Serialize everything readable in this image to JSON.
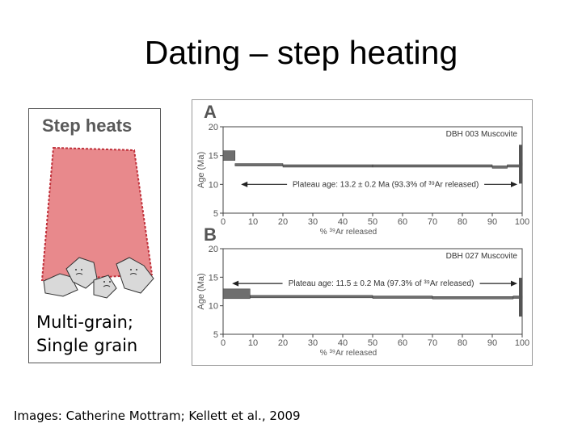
{
  "slide": {
    "title": "Dating – step heating",
    "credit": "Images: Catherine Mottram; Kellett et al., 2009"
  },
  "left_panel": {
    "label": "Step heats",
    "caption_line1": "Multi-grain;",
    "caption_line2": "Single grain",
    "colors": {
      "fill": "#e8898c",
      "border": "#c0303a",
      "grains": "#d9d9d9"
    }
  },
  "chart_data": [
    {
      "type": "line",
      "panel_label": "A",
      "sample": "DBH 003  Muscovite",
      "plateau_label": "Plateau age: 13.2 ± 0.2 Ma (93.3% of ³⁹Ar released)",
      "ylabel": "Age (Ma)",
      "xlabel": "% ³⁹Ar released",
      "xlim": [
        0,
        100
      ],
      "ylim": [
        5,
        20
      ],
      "xticks": [
        "0",
        "10",
        "20",
        "30",
        "40",
        "50",
        "60",
        "70",
        "80",
        "90",
        "100"
      ],
      "yticks": [
        "5",
        "10",
        "15",
        "20"
      ],
      "steps": [
        {
          "x0": 0,
          "x1": 4,
          "age": 15.0
        },
        {
          "x0": 4,
          "x1": 20,
          "age": 13.4
        },
        {
          "x0": 20,
          "x1": 50,
          "age": 13.2
        },
        {
          "x0": 50,
          "x1": 90,
          "age": 13.2
        },
        {
          "x0": 90,
          "x1": 95,
          "age": 13.0
        },
        {
          "x0": 95,
          "x1": 99,
          "age": 13.2
        },
        {
          "x0": 99,
          "x1": 100,
          "age": 13.5
        }
      ],
      "plateau_range": [
        6,
        100
      ],
      "plateau_arrow_age": 10.0
    },
    {
      "type": "line",
      "panel_label": "B",
      "sample": "DBH 027  Muscovite",
      "plateau_label": "Plateau age: 11.5 ± 0.2 Ma (97.3% of ³⁹Ar released)",
      "ylabel": "Age (Ma)",
      "xlabel": "% ³⁹Ar released",
      "xlim": [
        0,
        100
      ],
      "ylim": [
        5,
        20
      ],
      "xticks": [
        "0",
        "10",
        "20",
        "30",
        "40",
        "50",
        "60",
        "70",
        "80",
        "90",
        "100"
      ],
      "yticks": [
        "5",
        "10",
        "15",
        "20"
      ],
      "steps": [
        {
          "x0": 0,
          "x1": 9,
          "age": 12.1
        },
        {
          "x0": 9,
          "x1": 50,
          "age": 11.6
        },
        {
          "x0": 50,
          "x1": 70,
          "age": 11.5
        },
        {
          "x0": 70,
          "x1": 97,
          "age": 11.4
        },
        {
          "x0": 97,
          "x1": 100,
          "age": 11.5
        }
      ],
      "plateau_range": [
        3,
        100
      ],
      "plateau_arrow_age": 13.9
    }
  ]
}
